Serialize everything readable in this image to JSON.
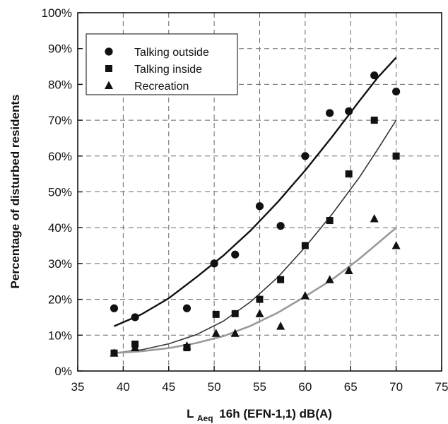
{
  "chart_data": {
    "type": "scatter",
    "title": "",
    "xlabel": "16h (EFN-1,1) dB(A)",
    "xlabel_prefix": "L",
    "xlabel_subscript": "Aeq",
    "ylabel": "Percentage of disturbed residents",
    "xlim": [
      35,
      75
    ],
    "ylim": [
      0,
      100
    ],
    "xticks": [
      "35",
      "40",
      "45",
      "50",
      "55",
      "60",
      "65",
      "70",
      "75"
    ],
    "yticks": [
      "0%",
      "10%",
      "20%",
      "30%",
      "40%",
      "50%",
      "60%",
      "70%",
      "80%",
      "90%",
      "100%"
    ],
    "grid": true,
    "legend_position": "top-left",
    "series": [
      {
        "name": "Talking outside",
        "marker": "circle",
        "x": [
          39,
          41.3,
          47,
          50,
          52.3,
          55,
          57.3,
          60,
          62.7,
          64.8,
          67.6,
          70
        ],
        "y": [
          17.5,
          15,
          17.5,
          30,
          32.5,
          46,
          40.5,
          60,
          72,
          72.5,
          82.5,
          78
        ],
        "trend": {
          "x": [
            39,
            42,
            45,
            48,
            51,
            54,
            57,
            60,
            63,
            66,
            68,
            70
          ],
          "y": [
            12.5,
            15.8,
            20.3,
            26.1,
            32.2,
            39.2,
            47.2,
            56,
            65.5,
            75.5,
            82,
            87.5
          ]
        }
      },
      {
        "name": "Talking inside",
        "marker": "square",
        "x": [
          39,
          41.3,
          47,
          50.2,
          52.3,
          55,
          57.3,
          60,
          62.7,
          64.8,
          67.6,
          70
        ],
        "y": [
          5,
          7.5,
          6.5,
          15.8,
          16,
          20,
          25.5,
          35,
          42,
          55,
          70,
          60
        ],
        "trend": {
          "x": [
            39,
            42,
            45,
            48,
            51,
            54,
            57,
            60,
            63,
            66,
            68,
            70
          ],
          "y": [
            5,
            5.9,
            7.6,
            10.1,
            13.9,
            19.3,
            26.2,
            34.6,
            43.9,
            54.2,
            62,
            70
          ]
        }
      },
      {
        "name": "Recreation",
        "marker": "triangle",
        "x": [
          39,
          41.3,
          47,
          50.2,
          52.3,
          55,
          57.3,
          60,
          62.7,
          64.8,
          67.6,
          70
        ],
        "y": [
          5,
          6.5,
          7,
          10.5,
          10.5,
          16,
          12.5,
          21,
          25.5,
          28,
          42.5,
          35
        ],
        "trend": {
          "x": [
            39,
            42,
            45,
            48,
            51,
            54,
            57,
            60,
            63,
            66,
            68,
            70
          ],
          "y": [
            5,
            5.5,
            6.4,
            7.8,
            9.7,
            12.6,
            16.3,
            20.8,
            25.6,
            31.4,
            35.7,
            40
          ]
        }
      }
    ]
  }
}
